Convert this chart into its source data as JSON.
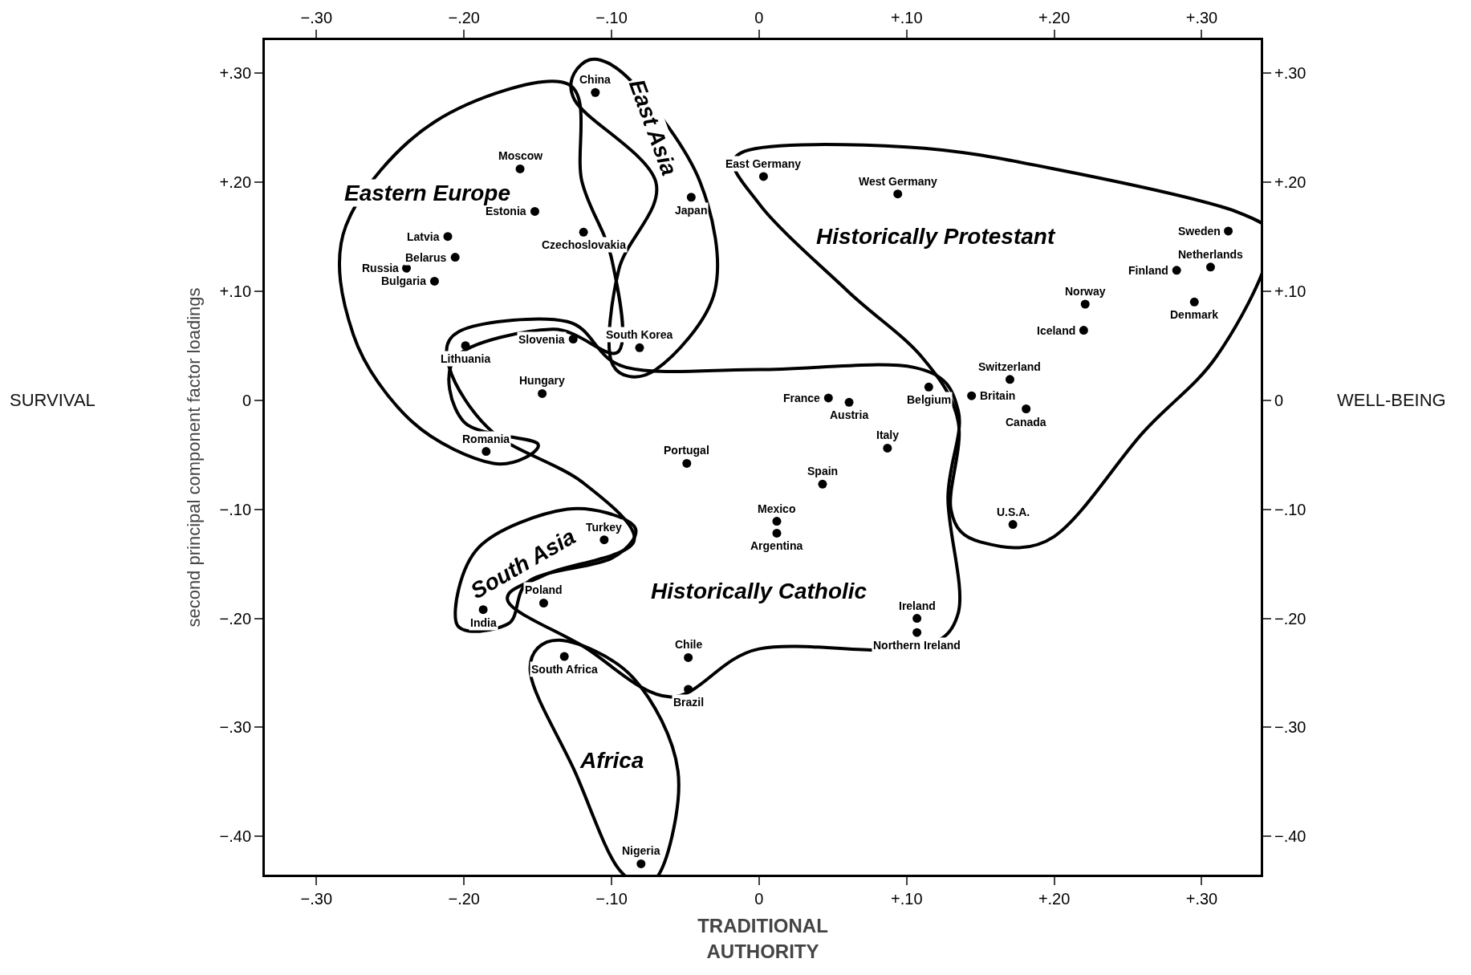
{
  "chart_data": {
    "type": "scatter",
    "xlabel": "TRADITIONAL AUTHORITY",
    "ylabel": "second principal component factor loadings",
    "marker": "circle",
    "grid": false,
    "xlim": [
      -0.335,
      0.34
    ],
    "ylim": [
      -0.435,
      0.33
    ],
    "xticks": [
      {
        "value": -0.3,
        "label": "−.30"
      },
      {
        "value": -0.2,
        "label": "−.20"
      },
      {
        "value": -0.1,
        "label": "−.10"
      },
      0,
      {
        "value": 0.1,
        "label": "+.10"
      },
      {
        "value": 0.2,
        "label": "+.20"
      },
      {
        "value": 0.3,
        "label": "+.30"
      }
    ],
    "yticks": [
      {
        "value": -0.4,
        "label": "−.40"
      },
      {
        "value": -0.3,
        "label": "−.30"
      },
      {
        "value": -0.2,
        "label": "−.20"
      },
      {
        "value": -0.1,
        "label": "−.10"
      },
      0,
      {
        "value": 0.1,
        "label": "+.10"
      },
      {
        "value": 0.2,
        "label": "+.20"
      },
      {
        "value": 0.3,
        "label": "+.30"
      }
    ],
    "x2lim": [
      -0.335,
      0.34
    ],
    "x2ticks": [
      {
        "value": -0.3,
        "label": "−.30"
      },
      {
        "value": -0.2,
        "label": "−.20"
      },
      {
        "value": -0.1,
        "label": "−.10"
      },
      0,
      {
        "value": 0.1,
        "label": "+.10"
      },
      {
        "value": 0.2,
        "label": "+.20"
      },
      {
        "value": 0.3,
        "label": "+.30"
      }
    ],
    "y2lim": [
      -0.435,
      0.33
    ],
    "y2ticks": [
      {
        "value": -0.4,
        "label": "−.40"
      },
      {
        "value": -0.3,
        "label": "−.30"
      },
      {
        "value": -0.2,
        "label": "−.20"
      },
      {
        "value": -0.1,
        "label": "−.10"
      },
      0,
      {
        "value": 0.1,
        "label": "+.10"
      },
      {
        "value": 0.2,
        "label": "+.20"
      },
      {
        "value": 0.3,
        "label": "+.30"
      }
    ],
    "series": [
      {
        "color": "#000000",
        "x": [
          -0.111,
          -0.162,
          -0.152,
          -0.046,
          -0.211,
          -0.119,
          -0.206,
          -0.239,
          -0.22,
          -0.081,
          -0.126,
          -0.199,
          -0.147,
          -0.185,
          0.003,
          0.094,
          0.318,
          0.306,
          0.283,
          0.221,
          0.295,
          0.22,
          0.17,
          0.047,
          0.061,
          0.115,
          0.144,
          0.181,
          0.087,
          -0.049,
          0.043,
          0.172,
          -0.105,
          0.012,
          0.012,
          -0.187,
          -0.146,
          0.107,
          0.107,
          -0.132,
          -0.048,
          -0.048,
          -0.08
        ],
        "values": [
          0.282,
          0.212,
          0.173,
          0.186,
          0.15,
          0.154,
          0.131,
          0.121,
          0.109,
          0.048,
          0.056,
          0.05,
          0.006,
          -0.047,
          0.205,
          0.189,
          0.155,
          0.122,
          0.119,
          0.088,
          0.09,
          0.064,
          0.019,
          0.002,
          -0.002,
          0.012,
          0.004,
          -0.008,
          -0.044,
          -0.058,
          -0.077,
          -0.114,
          -0.128,
          -0.111,
          -0.122,
          -0.192,
          -0.186,
          -0.2,
          -0.213,
          -0.235,
          -0.236,
          -0.265,
          -0.425
        ]
      }
    ],
    "annotations": [
      {
        "text": "China",
        "x": -0.111,
        "y": 0.282
      },
      {
        "text": "Moscow",
        "x": -0.162,
        "y": 0.212
      },
      {
        "text": "Estonia",
        "x": -0.152,
        "y": 0.173
      },
      {
        "text": "Japan",
        "x": -0.046,
        "y": 0.186
      },
      {
        "text": "Latvia",
        "x": -0.211,
        "y": 0.15
      },
      {
        "text": "Czechoslovakia",
        "x": -0.119,
        "y": 0.154
      },
      {
        "text": "Belarus",
        "x": -0.206,
        "y": 0.131
      },
      {
        "text": "Russia",
        "x": -0.239,
        "y": 0.121
      },
      {
        "text": "Bulgaria",
        "x": -0.22,
        "y": 0.109
      },
      {
        "text": "South Korea",
        "x": -0.081,
        "y": 0.048
      },
      {
        "text": "Slovenia",
        "x": -0.126,
        "y": 0.056
      },
      {
        "text": "Lithuania",
        "x": -0.199,
        "y": 0.05
      },
      {
        "text": "Hungary",
        "x": -0.147,
        "y": 0.006
      },
      {
        "text": "Romania",
        "x": -0.185,
        "y": -0.047
      },
      {
        "text": "East Germany",
        "x": 0.003,
        "y": 0.205
      },
      {
        "text": "West Germany",
        "x": 0.094,
        "y": 0.189
      },
      {
        "text": "Sweden",
        "x": 0.318,
        "y": 0.155
      },
      {
        "text": "Netherlands",
        "x": 0.306,
        "y": 0.122
      },
      {
        "text": "Finland",
        "x": 0.283,
        "y": 0.119
      },
      {
        "text": "Norway",
        "x": 0.221,
        "y": 0.088
      },
      {
        "text": "Denmark",
        "x": 0.295,
        "y": 0.09
      },
      {
        "text": "Iceland",
        "x": 0.22,
        "y": 0.064
      },
      {
        "text": "Switzerland",
        "x": 0.17,
        "y": 0.019
      },
      {
        "text": "France",
        "x": 0.047,
        "y": 0.002
      },
      {
        "text": "Austria",
        "x": 0.061,
        "y": -0.002
      },
      {
        "text": "Belgium",
        "x": 0.115,
        "y": 0.012
      },
      {
        "text": "Britain",
        "x": 0.144,
        "y": 0.004
      },
      {
        "text": "Canada",
        "x": 0.181,
        "y": -0.008
      },
      {
        "text": "Italy",
        "x": 0.087,
        "y": -0.044
      },
      {
        "text": "Portugal",
        "x": -0.049,
        "y": -0.058
      },
      {
        "text": "Spain",
        "x": 0.043,
        "y": -0.077
      },
      {
        "text": "U.S.A.",
        "x": 0.172,
        "y": -0.114
      },
      {
        "text": "Turkey",
        "x": -0.105,
        "y": -0.128
      },
      {
        "text": "Mexico",
        "x": 0.012,
        "y": -0.111
      },
      {
        "text": "Argentina",
        "x": 0.012,
        "y": -0.122
      },
      {
        "text": "India",
        "x": -0.187,
        "y": -0.192
      },
      {
        "text": "Poland",
        "x": -0.146,
        "y": -0.186
      },
      {
        "text": "Ireland",
        "x": 0.107,
        "y": -0.2
      },
      {
        "text": "Northern Ireland",
        "x": 0.107,
        "y": -0.213
      },
      {
        "text": "South Africa",
        "x": -0.132,
        "y": -0.235
      },
      {
        "text": "Chile",
        "x": -0.048,
        "y": -0.236
      },
      {
        "text": "Brazil",
        "x": -0.048,
        "y": -0.265
      },
      {
        "text": "Nigeria",
        "x": -0.08,
        "y": -0.425
      },
      "Eastern Europe",
      "East Asia",
      "Historically Protestant",
      "Historically Catholic",
      "South Asia",
      "Africa",
      "SURVIVAL",
      "WELL-BEING"
    ]
  }
}
